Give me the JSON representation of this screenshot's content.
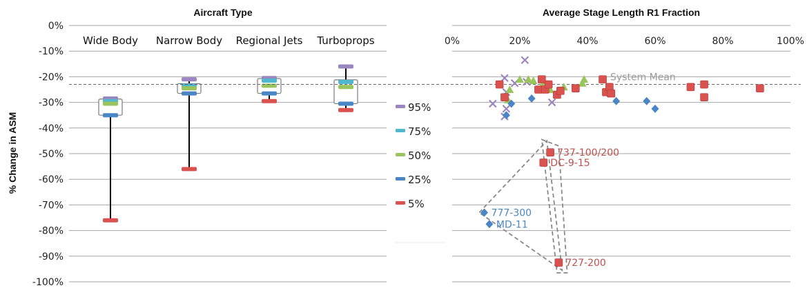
{
  "chart_data": [
    {
      "type": "box",
      "title": "Aircraft Type",
      "ylabel": "% Change in ASM",
      "ylim": [
        -100,
        0
      ],
      "y_ticks": [
        "0%",
        "-10%",
        "-20%",
        "-30%",
        "-40%",
        "-50%",
        "-60%",
        "-70%",
        "-80%",
        "-90%",
        "-100%"
      ],
      "categories": [
        "Wide Body",
        "Narrow Body",
        "Regional Jets",
        "Turboprops"
      ],
      "series": [
        {
          "name": "95%",
          "values": [
            -28.5,
            -21,
            -20.5,
            -16
          ]
        },
        {
          "name": "75%",
          "values": [
            -29.5,
            -23.5,
            -21.5,
            -22
          ]
        },
        {
          "name": "50%",
          "values": [
            -30.5,
            -24.5,
            -23.5,
            -24
          ]
        },
        {
          "name": "25%",
          "values": [
            -35,
            -26.5,
            -26.5,
            -30.5
          ]
        },
        {
          "name": "5%",
          "values": [
            -76,
            -56,
            -29.5,
            -33
          ]
        }
      ],
      "legend_position": "right",
      "colors": {
        "95%": "#9b86c0",
        "75%": "#4fb8d0",
        "50%": "#9ac45c",
        "25%": "#4a86c6",
        "5%": "#d9524f"
      },
      "grid": true
    },
    {
      "type": "scatter",
      "title": "Average Stage Length R1 Fraction",
      "xlim": [
        0,
        100
      ],
      "x_ticks": [
        "0%",
        "20%",
        "40%",
        "60%",
        "80%",
        "100%"
      ],
      "ylim": [
        -100,
        0
      ],
      "grid": true,
      "reference_line": {
        "label": "System Mean",
        "value": -23
      },
      "series": [
        {
          "name": "95%",
          "color": "#9b86c0",
          "marker": "x",
          "points": [
            [
              21.5,
              -13.5
            ],
            [
              15.5,
              -20.5
            ],
            [
              18.5,
              -22.5
            ],
            [
              16,
              -26
            ],
            [
              12,
              -30.5
            ],
            [
              16,
              -32.5
            ],
            [
              15.5,
              -35.5
            ],
            [
              22,
              -22
            ],
            [
              29.5,
              -30
            ]
          ]
        },
        {
          "name": "50%",
          "color": "#9ac45c",
          "marker": "triangle",
          "points": [
            [
              17,
              -25
            ],
            [
              16.5,
              -29
            ],
            [
              22.5,
              -21
            ],
            [
              24,
              -21.5
            ],
            [
              27,
              -22.5
            ],
            [
              29,
              -25
            ],
            [
              33,
              -24
            ],
            [
              39,
              -21
            ],
            [
              38.5,
              -22.5
            ],
            [
              31,
              -27
            ],
            [
              20,
              -21
            ]
          ]
        },
        {
          "name": "25%",
          "color": "#4a86c6",
          "marker": "diamond",
          "points": [
            [
              9.5,
              -73
            ],
            [
              11,
              -77.5
            ],
            [
              16,
              -35
            ],
            [
              17.5,
              -30.5
            ],
            [
              23.5,
              -28.5
            ],
            [
              46,
              -26.5
            ],
            [
              48.5,
              -29.5
            ],
            [
              57.5,
              -29.5
            ],
            [
              60,
              -32.5
            ]
          ]
        },
        {
          "name": "5%",
          "color": "#d9524f",
          "marker": "square",
          "points": [
            [
              14,
              -23
            ],
            [
              15.5,
              -28
            ],
            [
              25.5,
              -25
            ],
            [
              26.5,
              -21
            ],
            [
              27.5,
              -25
            ],
            [
              28.5,
              -23
            ],
            [
              29,
              -49.5
            ],
            [
              27,
              -53.5
            ],
            [
              31,
              -27
            ],
            [
              32,
              -25.5
            ],
            [
              31.5,
              -92.5
            ],
            [
              36.5,
              -24.5
            ],
            [
              44.5,
              -21
            ],
            [
              45.5,
              -26
            ],
            [
              46.5,
              -24
            ],
            [
              47,
              -26.5
            ],
            [
              70.5,
              -24
            ],
            [
              74.5,
              -23
            ],
            [
              74.5,
              -28
            ],
            [
              91,
              -24.5
            ]
          ]
        }
      ],
      "annotations": [
        {
          "text": "737-100/200",
          "x": 29,
          "y": -49.5,
          "color": "#c0504d"
        },
        {
          "text": "DC-9-15",
          "x": 27,
          "y": -53.5,
          "color": "#c0504d"
        },
        {
          "text": "777-300",
          "x": 9.5,
          "y": -73,
          "color": "#4a86c6"
        },
        {
          "text": "MD-11",
          "x": 11,
          "y": -77.5,
          "color": "#4a86c6"
        },
        {
          "text": "727-200",
          "x": 31.5,
          "y": -92.5,
          "color": "#c0504d"
        }
      ]
    }
  ]
}
